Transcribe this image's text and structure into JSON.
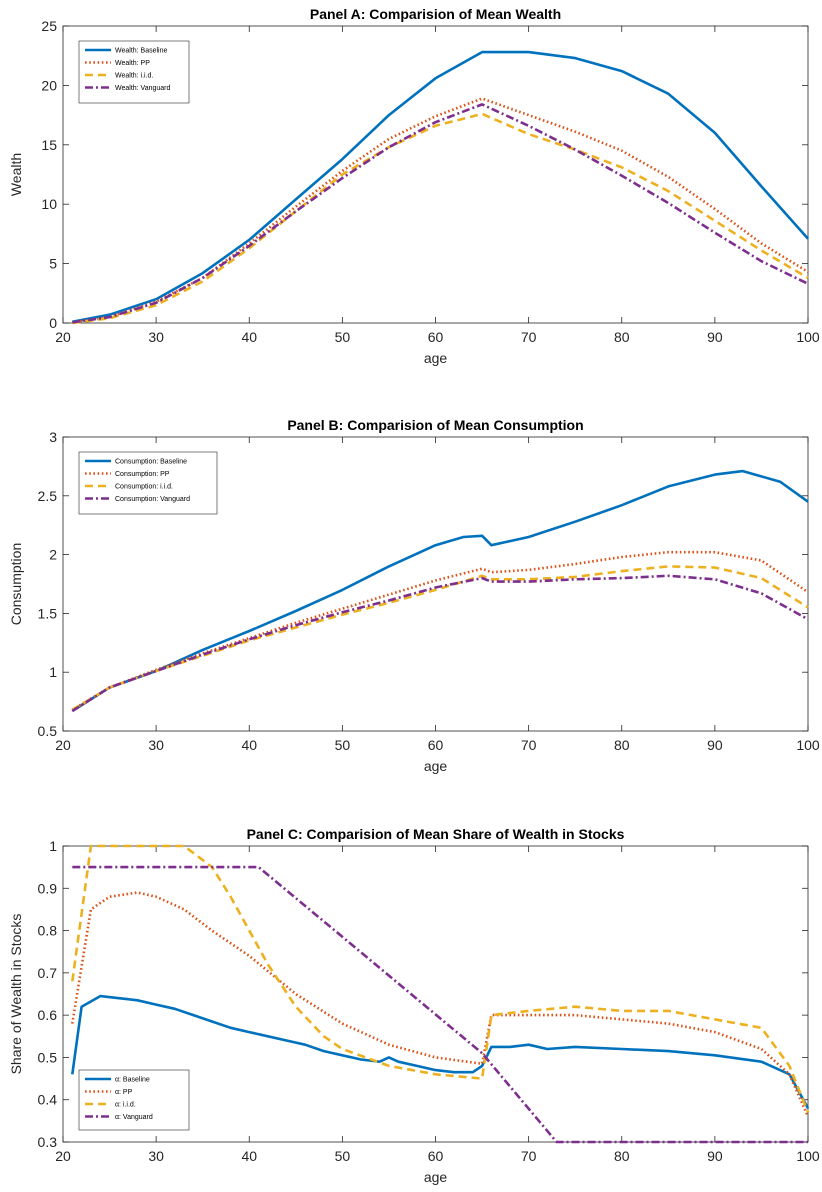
{
  "chart_data": [
    {
      "type": "line",
      "title": "Panel A: Comparision of Mean Wealth",
      "xlabel": "age",
      "ylabel": "Wealth",
      "xlim": [
        20,
        100
      ],
      "ylim": [
        0,
        25
      ],
      "xticks": [
        20,
        30,
        40,
        50,
        60,
        70,
        80,
        90,
        100
      ],
      "yticks": [
        0,
        5,
        10,
        15,
        20,
        25
      ],
      "grid": false,
      "legend_position": "top-left",
      "series": [
        {
          "name": "Wealth: Baseline",
          "color": "#0072BD",
          "dash": "solid",
          "x": [
            21,
            25,
            30,
            35,
            40,
            45,
            50,
            55,
            60,
            65,
            70,
            75,
            80,
            85,
            90,
            95,
            100
          ],
          "y": [
            0.1,
            0.7,
            2.0,
            4.2,
            7.0,
            10.4,
            13.8,
            17.5,
            20.6,
            22.8,
            22.8,
            22.3,
            21.2,
            19.3,
            16.0,
            11.5,
            7.1
          ]
        },
        {
          "name": "Wealth: PP",
          "color": "#D95319",
          "dash": "dot",
          "x": [
            21,
            25,
            30,
            35,
            40,
            45,
            50,
            55,
            60,
            65,
            70,
            75,
            80,
            85,
            90,
            95,
            100
          ],
          "y": [
            0.05,
            0.5,
            1.8,
            3.8,
            6.7,
            9.8,
            12.8,
            15.5,
            17.4,
            18.9,
            17.5,
            16.1,
            14.5,
            12.3,
            9.6,
            6.7,
            4.3
          ]
        },
        {
          "name": "Wealth: i.i.d.",
          "color": "#EDB120",
          "dash": "dash",
          "x": [
            21,
            25,
            30,
            35,
            40,
            45,
            50,
            55,
            60,
            65,
            70,
            75,
            80,
            85,
            90,
            95,
            100
          ],
          "y": [
            0.0,
            0.4,
            1.5,
            3.5,
            6.3,
            9.4,
            12.5,
            14.8,
            16.6,
            17.6,
            15.9,
            14.6,
            13.1,
            11.1,
            8.6,
            6.1,
            3.8
          ]
        },
        {
          "name": "Wealth: Vanguard",
          "color": "#7E2F8E",
          "dash": "dashdot",
          "x": [
            21,
            25,
            30,
            35,
            40,
            45,
            50,
            55,
            60,
            65,
            70,
            75,
            80,
            85,
            90,
            95,
            100
          ],
          "y": [
            0.05,
            0.5,
            1.7,
            3.8,
            6.5,
            9.4,
            12.2,
            14.8,
            16.9,
            18.4,
            16.6,
            14.6,
            12.4,
            10.1,
            7.6,
            5.2,
            3.3
          ]
        }
      ]
    },
    {
      "type": "line",
      "title": "Panel B: Comparision of Mean Consumption",
      "xlabel": "age",
      "ylabel": "Consumption",
      "xlim": [
        20,
        100
      ],
      "ylim": [
        0.5,
        3
      ],
      "xticks": [
        20,
        30,
        40,
        50,
        60,
        70,
        80,
        90,
        100
      ],
      "yticks": [
        0.5,
        1,
        1.5,
        2,
        2.5,
        3
      ],
      "grid": false,
      "legend_position": "top-left",
      "series": [
        {
          "name": "Consumption: Baseline",
          "color": "#0072BD",
          "dash": "solid",
          "x": [
            21,
            25,
            30,
            35,
            40,
            45,
            50,
            55,
            60,
            63,
            65,
            66,
            70,
            75,
            80,
            85,
            90,
            93,
            97,
            100
          ],
          "y": [
            0.67,
            0.87,
            1.01,
            1.19,
            1.35,
            1.52,
            1.7,
            1.9,
            2.08,
            2.15,
            2.16,
            2.08,
            2.15,
            2.28,
            2.42,
            2.58,
            2.68,
            2.71,
            2.62,
            2.45
          ]
        },
        {
          "name": "Consumption: PP",
          "color": "#D95319",
          "dash": "dot",
          "x": [
            21,
            25,
            30,
            35,
            40,
            45,
            50,
            55,
            60,
            65,
            66,
            70,
            75,
            80,
            85,
            90,
            95,
            100
          ],
          "y": [
            0.68,
            0.87,
            1.02,
            1.16,
            1.29,
            1.42,
            1.54,
            1.66,
            1.78,
            1.88,
            1.85,
            1.87,
            1.92,
            1.98,
            2.02,
            2.02,
            1.95,
            1.68
          ]
        },
        {
          "name": "Consumption: i.i.d.",
          "color": "#EDB120",
          "dash": "dash",
          "x": [
            21,
            25,
            30,
            35,
            40,
            45,
            50,
            55,
            60,
            65,
            66,
            70,
            75,
            80,
            85,
            90,
            95,
            100
          ],
          "y": [
            0.68,
            0.87,
            1.01,
            1.14,
            1.27,
            1.38,
            1.49,
            1.59,
            1.7,
            1.82,
            1.79,
            1.79,
            1.81,
            1.86,
            1.9,
            1.89,
            1.8,
            1.55
          ]
        },
        {
          "name": "Consumption: Vanguard",
          "color": "#7E2F8E",
          "dash": "dashdot",
          "x": [
            21,
            25,
            30,
            35,
            40,
            45,
            50,
            55,
            60,
            65,
            66,
            70,
            75,
            80,
            85,
            90,
            95,
            100
          ],
          "y": [
            0.67,
            0.87,
            1.01,
            1.15,
            1.28,
            1.4,
            1.51,
            1.61,
            1.72,
            1.8,
            1.77,
            1.77,
            1.79,
            1.8,
            1.82,
            1.79,
            1.67,
            1.45
          ]
        }
      ]
    },
    {
      "type": "line",
      "title": "Panel C: Comparision of Mean Share of Wealth in Stocks",
      "xlabel": "age",
      "ylabel": "Share of Wealth in Stocks",
      "xlim": [
        20,
        100
      ],
      "ylim": [
        0.3,
        1
      ],
      "xticks": [
        20,
        30,
        40,
        50,
        60,
        70,
        80,
        90,
        100
      ],
      "yticks": [
        0.3,
        0.4,
        0.5,
        0.6,
        0.7,
        0.8,
        0.9,
        1
      ],
      "grid": false,
      "legend_position": "bottom-left",
      "series": [
        {
          "name": "α: Baseline",
          "color": "#0072BD",
          "dash": "solid",
          "x": [
            21,
            22,
            24,
            26,
            28,
            30,
            32,
            34,
            36,
            38,
            40,
            42,
            44,
            46,
            48,
            50,
            52,
            54,
            55,
            56,
            58,
            60,
            62,
            64,
            65,
            66,
            68,
            70,
            72,
            75,
            80,
            85,
            90,
            95,
            98,
            100
          ],
          "y": [
            0.46,
            0.62,
            0.645,
            0.64,
            0.635,
            0.625,
            0.615,
            0.6,
            0.585,
            0.57,
            0.56,
            0.55,
            0.54,
            0.53,
            0.515,
            0.505,
            0.495,
            0.49,
            0.5,
            0.49,
            0.48,
            0.47,
            0.465,
            0.465,
            0.48,
            0.525,
            0.525,
            0.53,
            0.52,
            0.525,
            0.52,
            0.515,
            0.505,
            0.49,
            0.46,
            0.38
          ]
        },
        {
          "name": "α: PP",
          "color": "#D95319",
          "dash": "dot",
          "x": [
            21,
            23,
            25,
            28,
            30,
            33,
            36,
            40,
            45,
            50,
            55,
            60,
            65,
            66,
            70,
            75,
            80,
            85,
            90,
            95,
            98,
            100
          ],
          "y": [
            0.58,
            0.85,
            0.88,
            0.89,
            0.88,
            0.85,
            0.8,
            0.74,
            0.65,
            0.58,
            0.53,
            0.5,
            0.485,
            0.6,
            0.6,
            0.6,
            0.59,
            0.58,
            0.56,
            0.52,
            0.46,
            0.36
          ]
        },
        {
          "name": "α: i.i.d.",
          "color": "#EDB120",
          "dash": "dash",
          "x": [
            21,
            23,
            25,
            30,
            33,
            36,
            38,
            40,
            42,
            45,
            48,
            50,
            55,
            60,
            65,
            66,
            70,
            75,
            80,
            85,
            90,
            95,
            98,
            100
          ],
          "y": [
            0.68,
            1.0,
            1.0,
            1.0,
            1.0,
            0.95,
            0.88,
            0.8,
            0.72,
            0.62,
            0.55,
            0.52,
            0.48,
            0.46,
            0.45,
            0.6,
            0.61,
            0.62,
            0.61,
            0.61,
            0.59,
            0.57,
            0.48,
            0.37
          ]
        },
        {
          "name": "α: Vanguard",
          "color": "#7E2F8E",
          "dash": "dashdot",
          "x": [
            21,
            41,
            65,
            73,
            100
          ],
          "y": [
            0.95,
            0.95,
            0.51,
            0.3,
            0.3
          ]
        }
      ]
    }
  ]
}
